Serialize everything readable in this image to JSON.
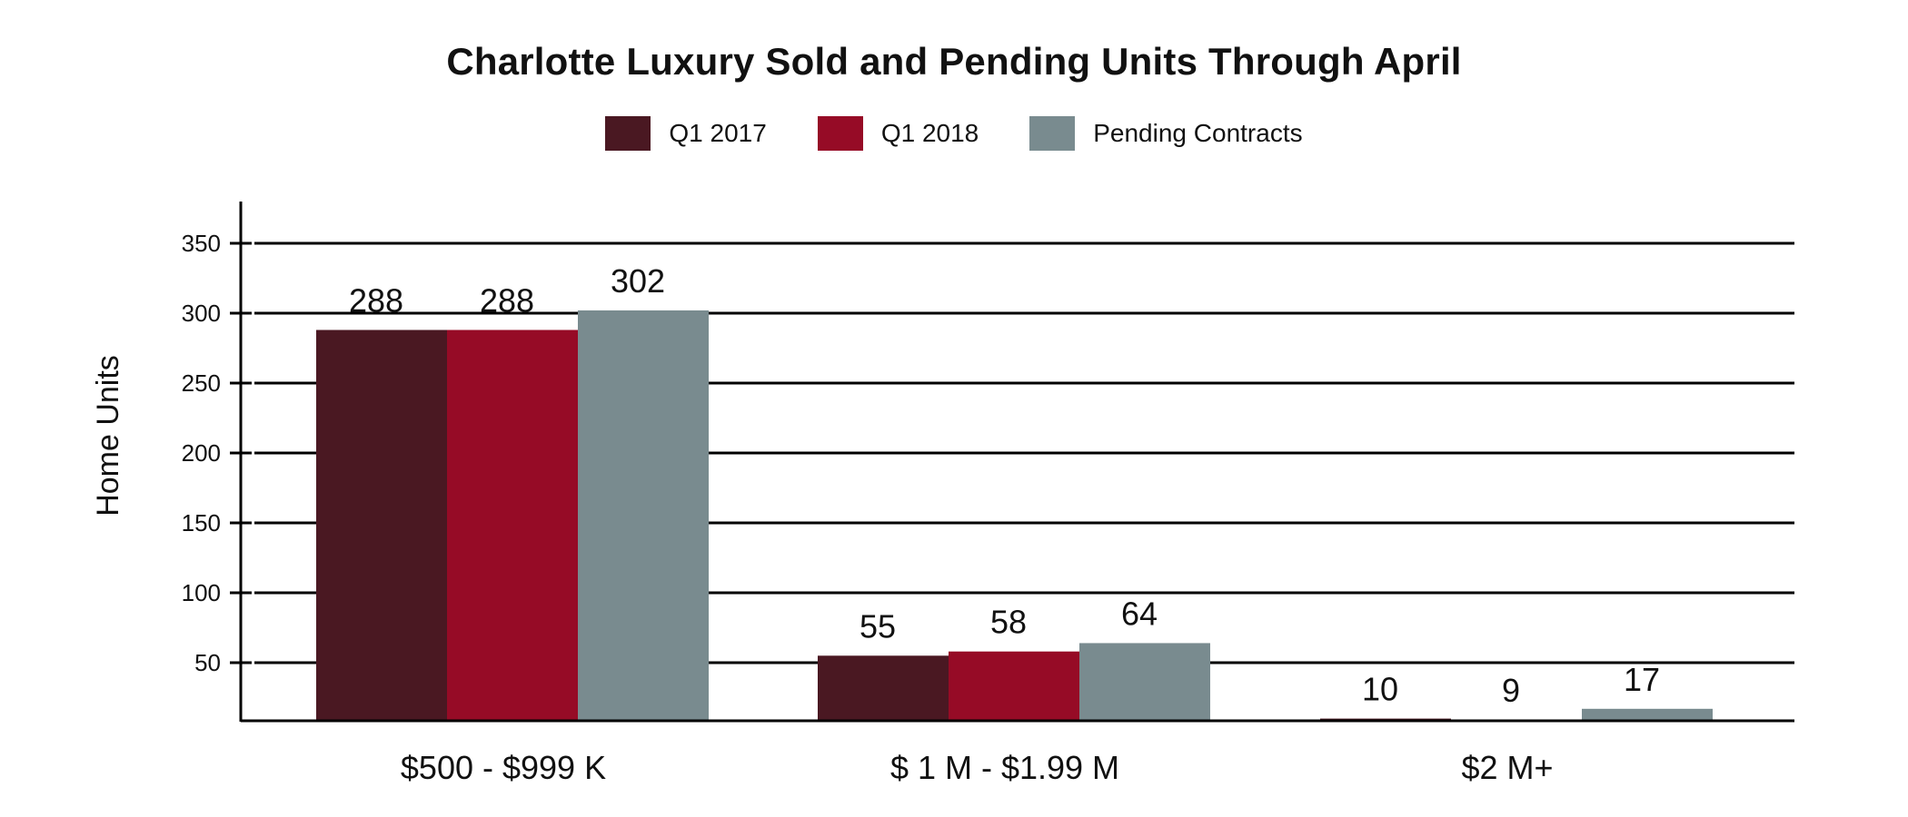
{
  "chart_data": {
    "type": "bar",
    "title": "Charlotte Luxury Sold and Pending Units Through April",
    "xlabel": "",
    "ylabel": "Home Units",
    "categories": [
      "$500 - $999 K",
      "$ 1 M - $1.99 M",
      "$2 M+"
    ],
    "series": [
      {
        "name": "Q1 2017",
        "color": "#4a1822",
        "values": [
          288,
          55,
          10
        ]
      },
      {
        "name": "Q1 2018",
        "color": "#960b26",
        "values": [
          288,
          58,
          9
        ]
      },
      {
        "name": "Pending Contracts",
        "color": "#798b8f",
        "values": [
          302,
          64,
          17
        ]
      }
    ],
    "yticks": [
      50,
      100,
      150,
      200,
      250,
      300,
      350
    ],
    "ylim": [
      0,
      350
    ],
    "grid": true,
    "legend_position": "top-center"
  }
}
